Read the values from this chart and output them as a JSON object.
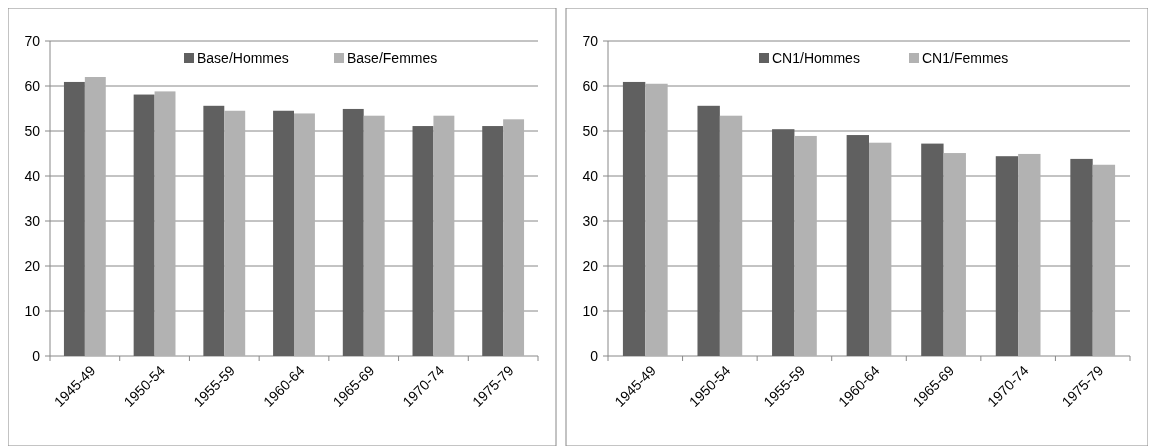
{
  "chart_data": [
    {
      "type": "bar",
      "categories": [
        "1945-49",
        "1950-54",
        "1955-59",
        "1960-64",
        "1965-69",
        "1970-74",
        "1975-79"
      ],
      "series": [
        {
          "name": "Base/Hommes",
          "color": "#606060",
          "values": [
            60.9,
            58.1,
            55.6,
            54.5,
            54.9,
            51.1,
            51.1
          ]
        },
        {
          "name": "Base/Femmes",
          "color": "#b2b2b2",
          "values": [
            62.0,
            58.8,
            54.5,
            53.9,
            53.4,
            53.4,
            52.6
          ]
        }
      ],
      "ylim": [
        0,
        70
      ],
      "yticks": [
        0,
        10,
        20,
        30,
        40,
        50,
        60,
        70
      ],
      "grid": "y",
      "legend": "top"
    },
    {
      "type": "bar",
      "categories": [
        "1945-49",
        "1950-54",
        "1955-59",
        "1960-64",
        "1965-69",
        "1970-74",
        "1975-79"
      ],
      "series": [
        {
          "name": "CN1/Hommes",
          "color": "#606060",
          "values": [
            60.9,
            55.6,
            50.4,
            49.1,
            47.2,
            44.4,
            43.8
          ]
        },
        {
          "name": "CN1/Femmes",
          "color": "#b2b2b2",
          "values": [
            60.5,
            53.4,
            48.9,
            47.4,
            45.1,
            44.9,
            42.5
          ]
        }
      ],
      "ylim": [
        0,
        70
      ],
      "yticks": [
        0,
        10,
        20,
        30,
        40,
        50,
        60,
        70
      ],
      "grid": "y",
      "legend": "top"
    }
  ]
}
